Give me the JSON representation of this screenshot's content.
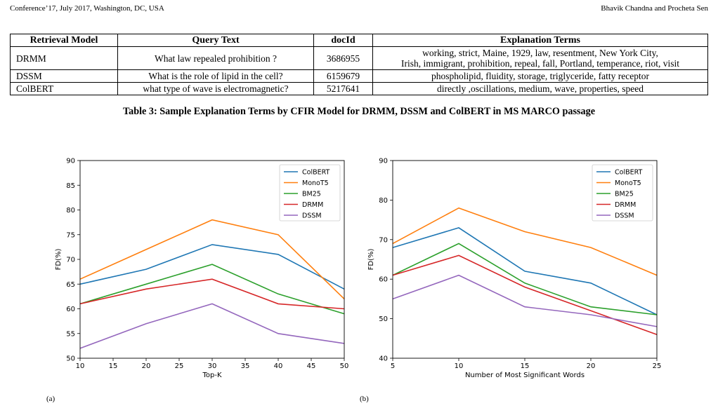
{
  "header": {
    "left": "Conference’17, July 2017, Washington, DC, USA",
    "right": "Bhavik Chandna and Procheta Sen"
  },
  "table": {
    "headers": [
      "Retrieval Model",
      "Query Text",
      "docId",
      "Explanation Terms"
    ],
    "rows": [
      {
        "model": "DRMM",
        "query": "What law repealed prohibition ?",
        "docid": "3686955",
        "terms_line1": "working, strict, Maine, 1929, law, resentment, New York City,",
        "terms_line2": "Irish, immigrant, prohibition, repeal, fall, Portland, temperance, riot, visit"
      },
      {
        "model": "DSSM",
        "query": "What is the role of lipid in the cell?",
        "docid": "6159679",
        "terms_line1": "phospholipid, fluidity, storage, triglyceride, fatty receptor",
        "terms_line2": ""
      },
      {
        "model": "ColBERT",
        "query": "what type of wave is electromagnetic?",
        "docid": "5217641",
        "terms_line1": "directly ,oscillations, medium, wave, properties, speed",
        "terms_line2": ""
      }
    ],
    "caption": "Table 3: Sample Explanation Terms by CFIR Model for DRMM, DSSM and ColBERT in MS MARCO passage"
  },
  "figure": {
    "label_a": "(a)",
    "label_b": "(b)"
  },
  "chart_data": [
    {
      "type": "line",
      "xlabel": "Top-K",
      "ylabel": "FD(%)",
      "x": [
        10,
        20,
        30,
        40,
        50
      ],
      "xlim": [
        10,
        50
      ],
      "ylim": [
        50,
        90
      ],
      "xticks": [
        10,
        15,
        20,
        25,
        30,
        35,
        40,
        45,
        50
      ],
      "yticks": [
        50,
        55,
        60,
        65,
        70,
        75,
        80,
        85,
        90
      ],
      "legend_position": "top-right",
      "grid": false,
      "series": [
        {
          "name": "ColBERT",
          "color": "#1f77b4",
          "values": [
            65,
            68,
            73,
            71,
            64
          ]
        },
        {
          "name": "MonoT5",
          "color": "#ff7f0e",
          "values": [
            66,
            72,
            78,
            75,
            62
          ]
        },
        {
          "name": "BM25",
          "color": "#2ca02c",
          "values": [
            61,
            65,
            69,
            63,
            59
          ]
        },
        {
          "name": "DRMM",
          "color": "#d62728",
          "values": [
            61,
            64,
            66,
            61,
            60
          ]
        },
        {
          "name": "DSSM",
          "color": "#9467bd",
          "values": [
            52,
            57,
            61,
            55,
            53
          ]
        }
      ]
    },
    {
      "type": "line",
      "xlabel": "Number of Most Significant Words",
      "ylabel": "FD(%)",
      "x": [
        5,
        10,
        15,
        20,
        25
      ],
      "xlim": [
        5,
        25
      ],
      "ylim": [
        40,
        90
      ],
      "xticks": [
        5,
        10,
        15,
        20,
        25
      ],
      "yticks": [
        40,
        50,
        60,
        70,
        80,
        90
      ],
      "legend_position": "top-right",
      "grid": false,
      "series": [
        {
          "name": "ColBERT",
          "color": "#1f77b4",
          "values": [
            68,
            73,
            62,
            59,
            51
          ]
        },
        {
          "name": "MonoT5",
          "color": "#ff7f0e",
          "values": [
            69,
            78,
            72,
            68,
            61
          ]
        },
        {
          "name": "BM25",
          "color": "#2ca02c",
          "values": [
            61,
            69,
            59,
            53,
            51
          ]
        },
        {
          "name": "DRMM",
          "color": "#d62728",
          "values": [
            61,
            66,
            58,
            52,
            46
          ]
        },
        {
          "name": "DSSM",
          "color": "#9467bd",
          "values": [
            55,
            61,
            53,
            51,
            48
          ]
        }
      ]
    }
  ]
}
